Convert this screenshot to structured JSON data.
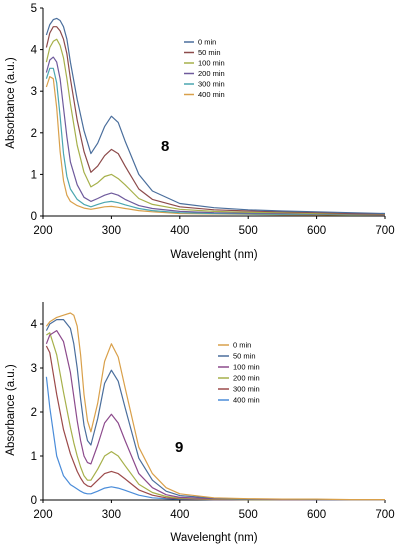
{
  "chart_data": [
    {
      "type": "line",
      "panel_label": "8",
      "xlabel": "Wavelenght (nm)",
      "ylabel": "Absorbance (a.u.)",
      "xlim": [
        200,
        700
      ],
      "ylim": [
        0,
        5
      ],
      "xticks": [
        "200",
        "300",
        "400",
        "500",
        "600",
        "700"
      ],
      "yticks": [
        "0",
        "1",
        "2",
        "3",
        "4",
        "5"
      ],
      "legend_position": "top-center",
      "series": [
        {
          "name": "0 min",
          "color": "#4a6e9c",
          "x": [
            205,
            210,
            215,
            220,
            225,
            230,
            235,
            240,
            250,
            260,
            270,
            280,
            290,
            300,
            310,
            320,
            340,
            360,
            400,
            450,
            500,
            550,
            600,
            650,
            700
          ],
          "y": [
            4.35,
            4.6,
            4.72,
            4.75,
            4.7,
            4.55,
            4.25,
            3.7,
            2.8,
            2.05,
            1.5,
            1.75,
            2.15,
            2.4,
            2.25,
            1.8,
            1.0,
            0.6,
            0.3,
            0.2,
            0.15,
            0.12,
            0.1,
            0.08,
            0.06
          ]
        },
        {
          "name": "50 min",
          "color": "#8c4a4a",
          "x": [
            205,
            210,
            215,
            220,
            225,
            230,
            235,
            240,
            250,
            260,
            270,
            280,
            290,
            300,
            310,
            320,
            340,
            360,
            400,
            450,
            500,
            550,
            600,
            650,
            700
          ],
          "y": [
            4.05,
            4.4,
            4.55,
            4.55,
            4.45,
            4.25,
            3.9,
            3.3,
            2.3,
            1.55,
            1.05,
            1.2,
            1.45,
            1.6,
            1.5,
            1.2,
            0.65,
            0.4,
            0.22,
            0.15,
            0.12,
            0.1,
            0.08,
            0.06,
            0.05
          ]
        },
        {
          "name": "100 min",
          "color": "#a6b04a",
          "x": [
            205,
            210,
            215,
            220,
            225,
            230,
            235,
            240,
            250,
            260,
            270,
            280,
            290,
            300,
            310,
            320,
            340,
            360,
            400,
            450,
            500,
            550,
            600,
            650,
            700
          ],
          "y": [
            3.7,
            4.05,
            4.2,
            4.25,
            4.1,
            3.8,
            3.3,
            2.7,
            1.7,
            1.05,
            0.7,
            0.8,
            0.95,
            1.0,
            0.9,
            0.75,
            0.42,
            0.28,
            0.16,
            0.11,
            0.09,
            0.08,
            0.06,
            0.05,
            0.04
          ]
        },
        {
          "name": "200 min",
          "color": "#6e5a9c",
          "x": [
            205,
            210,
            215,
            220,
            225,
            230,
            235,
            240,
            250,
            260,
            270,
            280,
            290,
            300,
            310,
            320,
            340,
            360,
            400,
            450,
            500,
            550,
            600,
            650,
            700
          ],
          "y": [
            3.45,
            3.75,
            3.82,
            3.7,
            3.3,
            2.6,
            1.9,
            1.3,
            0.75,
            0.45,
            0.35,
            0.42,
            0.5,
            0.55,
            0.5,
            0.4,
            0.25,
            0.18,
            0.11,
            0.08,
            0.07,
            0.06,
            0.05,
            0.04,
            0.03
          ]
        },
        {
          "name": "300 min",
          "color": "#4aa6b0",
          "x": [
            205,
            210,
            215,
            220,
            225,
            230,
            235,
            240,
            250,
            260,
            270,
            280,
            290,
            300,
            310,
            320,
            340,
            360,
            400,
            450,
            500,
            550,
            600,
            650,
            700
          ],
          "y": [
            3.3,
            3.55,
            3.55,
            3.2,
            2.4,
            1.5,
            0.95,
            0.65,
            0.4,
            0.28,
            0.22,
            0.28,
            0.33,
            0.35,
            0.32,
            0.27,
            0.18,
            0.13,
            0.08,
            0.06,
            0.05,
            0.04,
            0.04,
            0.03,
            0.03
          ]
        },
        {
          "name": "400 min",
          "color": "#d9a04a",
          "x": [
            205,
            210,
            215,
            220,
            225,
            230,
            235,
            240,
            250,
            260,
            270,
            280,
            290,
            300,
            310,
            320,
            340,
            360,
            400,
            450,
            500,
            550,
            600,
            650,
            700
          ],
          "y": [
            3.1,
            3.35,
            3.3,
            2.6,
            1.55,
            0.85,
            0.5,
            0.35,
            0.25,
            0.19,
            0.16,
            0.19,
            0.22,
            0.23,
            0.21,
            0.18,
            0.13,
            0.1,
            0.06,
            0.05,
            0.04,
            0.03,
            0.03,
            0.02,
            0.02
          ]
        }
      ]
    },
    {
      "type": "line",
      "panel_label": "9",
      "xlabel": "Wavelenght (nm)",
      "ylabel": "Absorbance (a.u.)",
      "xlim": [
        200,
        700
      ],
      "ylim": [
        0,
        4.5
      ],
      "xticks": [
        "200",
        "300",
        "400",
        "500",
        "600",
        "700"
      ],
      "yticks": [
        "0",
        "1",
        "2",
        "3",
        "4"
      ],
      "legend_position": "right",
      "series": [
        {
          "name": "0 min",
          "color": "#d9a04a",
          "x": [
            205,
            210,
            220,
            230,
            240,
            245,
            250,
            255,
            260,
            265,
            270,
            280,
            290,
            300,
            310,
            320,
            340,
            360,
            380,
            400,
            450,
            500,
            550,
            600,
            650,
            700
          ],
          "y": [
            3.95,
            4.05,
            4.15,
            4.2,
            4.25,
            4.2,
            3.95,
            3.3,
            2.4,
            1.8,
            1.55,
            2.2,
            3.15,
            3.55,
            3.25,
            2.55,
            1.2,
            0.6,
            0.28,
            0.14,
            0.05,
            0.03,
            0.02,
            0.02,
            0.01,
            0.01
          ]
        },
        {
          "name": "50 min",
          "color": "#4a6e9c",
          "x": [
            205,
            210,
            220,
            230,
            240,
            245,
            250,
            255,
            260,
            265,
            270,
            280,
            290,
            300,
            310,
            320,
            340,
            360,
            380,
            400,
            450,
            500,
            550,
            600,
            650,
            700
          ],
          "y": [
            3.85,
            4.0,
            4.1,
            4.1,
            3.9,
            3.55,
            3.0,
            2.3,
            1.7,
            1.35,
            1.25,
            1.85,
            2.65,
            2.95,
            2.7,
            2.1,
            0.95,
            0.45,
            0.2,
            0.1,
            0.04,
            0.02,
            0.02,
            0.01,
            0.01,
            0.01
          ]
        },
        {
          "name": "100 min",
          "color": "#8c4a8c",
          "x": [
            205,
            210,
            220,
            230,
            240,
            245,
            250,
            255,
            260,
            265,
            270,
            280,
            290,
            300,
            310,
            320,
            340,
            360,
            380,
            400,
            450,
            500,
            550,
            600,
            650,
            700
          ],
          "y": [
            3.55,
            3.75,
            3.85,
            3.6,
            2.9,
            2.35,
            1.8,
            1.35,
            1.0,
            0.85,
            0.82,
            1.25,
            1.75,
            1.95,
            1.75,
            1.35,
            0.6,
            0.28,
            0.12,
            0.06,
            0.03,
            0.02,
            0.01,
            0.01,
            0.01,
            0.01
          ]
        },
        {
          "name": "200 min",
          "color": "#a6b04a",
          "x": [
            205,
            210,
            220,
            230,
            240,
            245,
            250,
            255,
            260,
            265,
            270,
            280,
            290,
            300,
            310,
            320,
            340,
            360,
            380,
            400,
            450,
            500,
            550,
            600,
            650,
            700
          ],
          "y": [
            3.75,
            3.8,
            3.3,
            2.45,
            1.65,
            1.3,
            1.0,
            0.75,
            0.55,
            0.45,
            0.45,
            0.7,
            1.0,
            1.1,
            1.0,
            0.78,
            0.36,
            0.17,
            0.08,
            0.04,
            0.02,
            0.01,
            0.01,
            0.01,
            0.01,
            0.01
          ]
        },
        {
          "name": "300 min",
          "color": "#9c4a4a",
          "x": [
            205,
            210,
            220,
            230,
            240,
            245,
            250,
            255,
            260,
            265,
            270,
            280,
            290,
            300,
            310,
            320,
            340,
            360,
            380,
            400,
            450,
            500,
            550,
            600,
            650,
            700
          ],
          "y": [
            3.5,
            3.35,
            2.4,
            1.6,
            1.05,
            0.85,
            0.65,
            0.5,
            0.38,
            0.32,
            0.3,
            0.45,
            0.6,
            0.65,
            0.6,
            0.48,
            0.23,
            0.11,
            0.05,
            0.03,
            0.01,
            0.01,
            0.01,
            0.01,
            0.01,
            0.01
          ]
        },
        {
          "name": "400 min",
          "color": "#4a8cd9",
          "x": [
            205,
            210,
            220,
            230,
            240,
            245,
            250,
            255,
            260,
            265,
            270,
            280,
            290,
            300,
            310,
            320,
            340,
            360,
            380,
            400,
            450,
            500,
            550,
            600,
            650,
            700
          ],
          "y": [
            2.8,
            2.1,
            1.0,
            0.55,
            0.35,
            0.3,
            0.25,
            0.2,
            0.16,
            0.14,
            0.14,
            0.2,
            0.27,
            0.3,
            0.27,
            0.22,
            0.11,
            0.05,
            0.03,
            0.02,
            0.01,
            0.01,
            0.01,
            0.01,
            0.01,
            0.01
          ]
        }
      ]
    }
  ]
}
